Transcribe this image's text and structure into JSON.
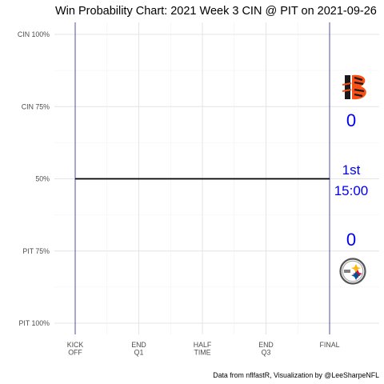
{
  "chart_data": {
    "type": "line",
    "title": "Win Probability Chart: 2021 Week 3 CIN @ PIT on 2021-09-26",
    "caption": "Data from nflfastR, Visualization by @LeeSharpeNFL",
    "xlabel": "",
    "ylabel": "",
    "x_ticks": [
      {
        "label": [
          "KICK",
          "OFF"
        ],
        "value": 0
      },
      {
        "label": [
          "END",
          "Q1"
        ],
        "value": 900
      },
      {
        "label": [
          "HALF",
          "TIME"
        ],
        "value": 1800
      },
      {
        "label": [
          "END",
          "Q3"
        ],
        "value": 2700
      },
      {
        "label": [
          "FINAL"
        ],
        "value": 3600
      }
    ],
    "xlim": [
      0,
      3600
    ],
    "y_ticks": [
      {
        "label": "CIN 100%",
        "value": 1.0
      },
      {
        "label": "CIN 75%",
        "value": 0.75
      },
      {
        "label": "50%",
        "value": 0.5
      },
      {
        "label": "PIT 75%",
        "value": 0.25
      },
      {
        "label": "PIT 100%",
        "value": 0.0
      }
    ],
    "ylim": [
      0,
      1
    ],
    "series": [
      {
        "x": [
          0,
          3600
        ],
        "y": [
          0.5,
          0.5
        ],
        "color": "#000000"
      }
    ],
    "grid": true,
    "annotations": {
      "home_score": "0",
      "away_score": "0",
      "quarter": "1st",
      "clock": "15:00"
    },
    "annotation_color": "#0000ee",
    "period_line_color": "#2b2b8c",
    "logos": {
      "top": "bengals-logo",
      "bottom": "steelers-logo"
    }
  }
}
